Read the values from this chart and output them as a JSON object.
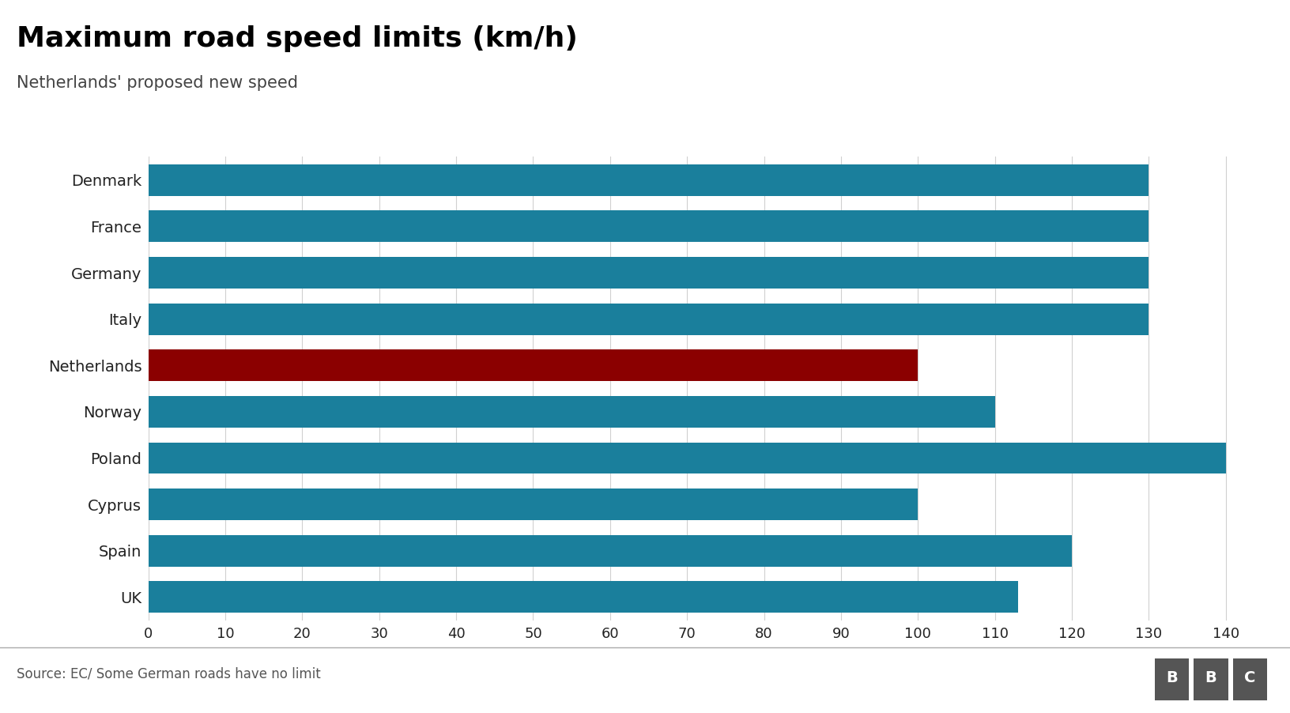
{
  "title": "Maximum road speed limits (km/h)",
  "subtitle": "Netherlands' proposed new speed",
  "source": "Source: EC/ Some German roads have no limit",
  "categories": [
    "Denmark",
    "France",
    "Germany",
    "Italy",
    "Netherlands",
    "Norway",
    "Poland",
    "Cyprus",
    "Spain",
    "UK"
  ],
  "values": [
    130,
    130,
    130,
    130,
    100,
    110,
    140,
    100,
    120,
    113
  ],
  "bar_colors": [
    "#1a7f9c",
    "#1a7f9c",
    "#1a7f9c",
    "#1a7f9c",
    "#8b0000",
    "#1a7f9c",
    "#1a7f9c",
    "#1a7f9c",
    "#1a7f9c",
    "#1a7f9c"
  ],
  "xlim": [
    0,
    145
  ],
  "xticks": [
    0,
    10,
    20,
    30,
    40,
    50,
    60,
    70,
    80,
    90,
    100,
    110,
    120,
    130,
    140
  ],
  "background_color": "#ffffff",
  "title_fontsize": 26,
  "subtitle_fontsize": 15,
  "tick_fontsize": 13,
  "label_fontsize": 14,
  "source_fontsize": 12,
  "bar_height": 0.68,
  "bbc_gray": "#555555"
}
